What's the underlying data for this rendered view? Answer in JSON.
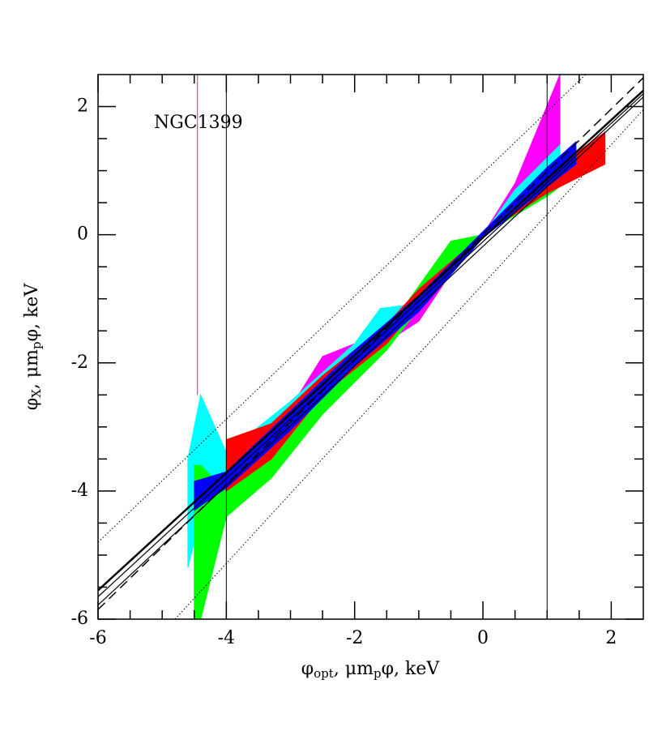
{
  "chart_data": {
    "type": "band",
    "annotation": "NGC1399",
    "x_label": [
      "φ",
      "opt",
      ",  μm",
      "p",
      "φ,  keV"
    ],
    "y_label": [
      "φ",
      "X",
      ",  μm",
      "p",
      "φ,  keV"
    ],
    "xlim": [
      -6,
      2.5
    ],
    "ylim": [
      -6,
      2.5
    ],
    "xticks": [
      -6,
      -4,
      -2,
      0,
      2
    ],
    "yticks": [
      -6,
      -4,
      -2,
      0,
      2
    ],
    "xminorticks": [
      -5.5,
      -5,
      -4.5,
      -3.5,
      -3,
      -2.5,
      -1.5,
      -1,
      -0.5,
      0.5,
      1,
      1.5
    ],
    "yminorticks": [
      -5.5,
      -5,
      -4.5,
      -3.5,
      -3,
      -2.5,
      -1.5,
      -1,
      -0.5,
      0.5,
      1,
      1.5
    ],
    "bands": [
      {
        "color": "#ff00ff",
        "x": [
          -4.4,
          -4,
          -3,
          -2.5,
          -2,
          -1,
          -0.5,
          0,
          0.5,
          1.2
        ],
        "lower": [
          -4.8,
          -4.3,
          -3,
          -2.3,
          -2,
          -1.35,
          -0.6,
          0,
          0.5,
          1.4
        ],
        "upper": [
          -3.8,
          -3.7,
          -2.7,
          -1.9,
          -1.7,
          -1.1,
          -0.4,
          0,
          0.8,
          2.5
        ]
      },
      {
        "color": "#00ffff",
        "x": [
          -4.6,
          -4.4,
          -4,
          -3,
          -2,
          -1.6,
          -1.2,
          0,
          0.5,
          1.2
        ],
        "lower": [
          -5.2,
          -4.4,
          -3.9,
          -3,
          -2.1,
          -1.6,
          -1.4,
          0,
          0.4,
          0.9
        ],
        "upper": [
          -3.5,
          -2.5,
          -3.4,
          -2.6,
          -1.7,
          -1.15,
          -1.1,
          0,
          0.7,
          1.4
        ]
      },
      {
        "color": "#00ff00",
        "x": [
          -4.5,
          -4.4,
          -4,
          -3.3,
          -2.5,
          -1.5,
          -0.5,
          0,
          1,
          1.4
        ],
        "lower": [
          -6,
          -6,
          -4.4,
          -3.8,
          -2.8,
          -1.8,
          -0.5,
          0,
          0.6,
          0.9
        ],
        "upper": [
          -3.6,
          -3.6,
          -4,
          -3.4,
          -2.4,
          -1.5,
          -0.1,
          0,
          0.8,
          1.1
        ]
      },
      {
        "color": "#ff0000",
        "x": [
          -4,
          -3.3,
          -2.5,
          -1.5,
          -1,
          0,
          1,
          1.9
        ],
        "lower": [
          -4,
          -3.5,
          -2.5,
          -1.7,
          -1.1,
          0,
          0.65,
          1.1
        ],
        "upper": [
          -3.2,
          -2.95,
          -2.2,
          -1.4,
          -0.85,
          0,
          0.95,
          1.6
        ]
      },
      {
        "color": "#0000ff",
        "x": [
          -4.5,
          -4,
          -3,
          -2,
          -1,
          0,
          1,
          1.45
        ],
        "lower": [
          -4.3,
          -3.95,
          -3.05,
          -2.05,
          -1.2,
          -0.05,
          0.75,
          1.1
        ],
        "upper": [
          -3.85,
          -3.7,
          -2.75,
          -1.8,
          -0.95,
          0.05,
          1.05,
          1.45
        ]
      }
    ],
    "lines": [
      {
        "color": "#ff00ff",
        "style": "solid",
        "width": 1,
        "x": [
          -4.45,
          -4.45
        ],
        "y": [
          -2.5,
          2.5
        ]
      },
      {
        "color": "#000000",
        "style": "solid",
        "width": 2.5,
        "x": [
          -6,
          2.5
        ],
        "y": [
          -5.55,
          2.25
        ]
      },
      {
        "color": "#000000",
        "style": "solid",
        "width": 1.2,
        "x": [
          -6,
          2.5
        ],
        "y": [
          -5.65,
          2.2
        ]
      },
      {
        "color": "#000000",
        "style": "solid",
        "width": 1.2,
        "x": [
          -6,
          2.5
        ],
        "y": [
          -5.78,
          2.15
        ]
      },
      {
        "color": "#000000",
        "style": "dashed",
        "width": 1.5,
        "x": [
          -6,
          2.5
        ],
        "y": [
          -5.85,
          2.45
        ]
      },
      {
        "color": "#000000",
        "style": "dotted",
        "width": 1,
        "x": [
          -6,
          1.6
        ],
        "y": [
          -4.8,
          2.5
        ]
      },
      {
        "color": "#000000",
        "style": "dotted",
        "width": 1,
        "x": [
          -4.8,
          2.5
        ],
        "y": [
          -6,
          1.95
        ]
      },
      {
        "color": "#000000",
        "style": "solid",
        "width": 1,
        "x": [
          -4,
          -4
        ],
        "y": [
          -6,
          2.5
        ]
      },
      {
        "color": "#000000",
        "style": "solid",
        "width": 1,
        "x": [
          1,
          1
        ],
        "y": [
          -6,
          2.5
        ]
      }
    ]
  }
}
